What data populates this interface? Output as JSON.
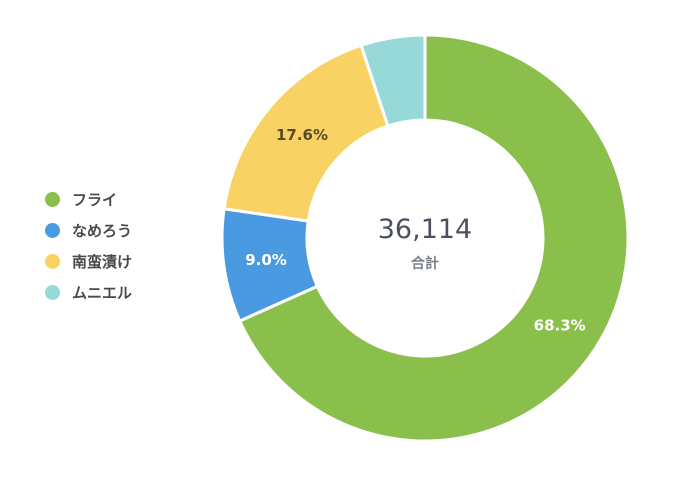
{
  "chart_data": {
    "type": "pie",
    "donut": true,
    "categories": [
      "フライ",
      "なめろう",
      "南蛮漬け",
      "ムニエル"
    ],
    "values": [
      68.3,
      9.0,
      17.6,
      5.1
    ],
    "value_labels": [
      "68.3%",
      "9.0%",
      "17.6%",
      ""
    ],
    "colors": [
      "#8bbf4c",
      "#4a9ae2",
      "#f8d262",
      "#97d9d9"
    ],
    "label_colors": [
      "#ffffff",
      "#ffffff",
      "#5a4a2a",
      "#ffffff"
    ],
    "center_total": "36,114",
    "center_caption": "合計",
    "legend_position": "left"
  },
  "legend": {
    "items": [
      {
        "label": "フライ",
        "color": "#8bbf4c"
      },
      {
        "label": "なめろう",
        "color": "#4a9ae2"
      },
      {
        "label": "南蛮漬け",
        "color": "#f8d262"
      },
      {
        "label": "ムニエル",
        "color": "#97d9d9"
      }
    ]
  }
}
